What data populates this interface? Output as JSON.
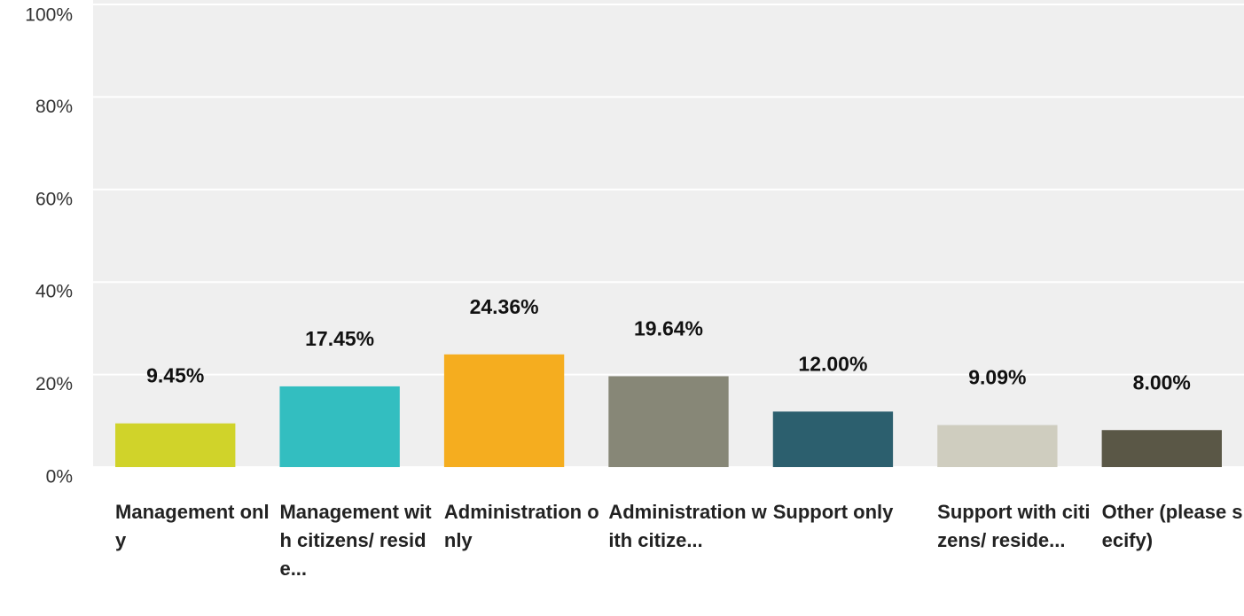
{
  "chart_data": {
    "type": "bar",
    "categories": [
      "Management only",
      "Management with citizens/ reside...",
      "Administration only",
      "Administration with citize...",
      "Support only",
      "Support with citizens/ reside...",
      "Other (please specify)"
    ],
    "values": [
      9.45,
      17.45,
      24.36,
      19.64,
      12.0,
      9.09,
      8.0
    ],
    "value_labels": [
      "9.45%",
      "17.45%",
      "24.36%",
      "19.64%",
      "12.00%",
      "9.09%",
      "8.00%"
    ],
    "colors": [
      "#d0d32a",
      "#33bec0",
      "#f5ad1f",
      "#878777",
      "#2c5f6e",
      "#cfcdbf",
      "#5a5746"
    ],
    "ylim": [
      0,
      100
    ],
    "yticks": [
      {
        "value": 0,
        "label": "0%"
      },
      {
        "value": 20,
        "label": "20%"
      },
      {
        "value": 40,
        "label": "40%"
      },
      {
        "value": 60,
        "label": "60%"
      },
      {
        "value": 80,
        "label": "80%"
      },
      {
        "value": 100,
        "label": "100%"
      }
    ],
    "grid": true
  }
}
